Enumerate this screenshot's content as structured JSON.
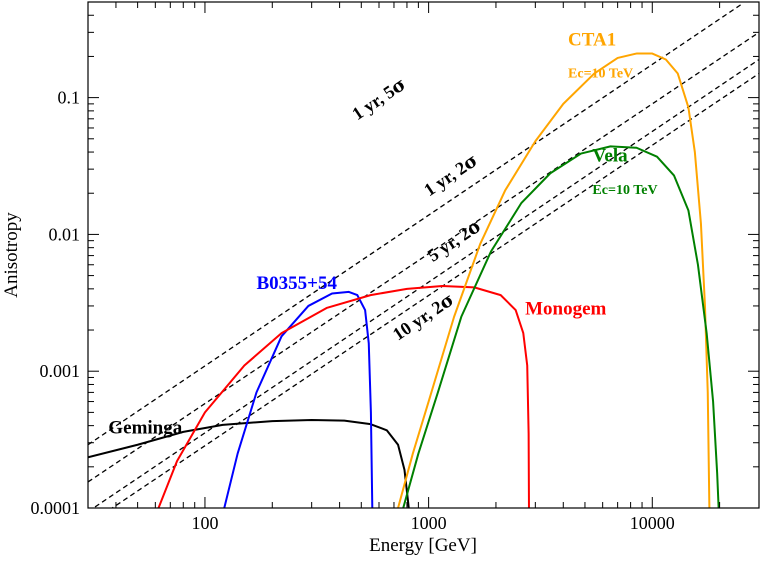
{
  "chart_data": {
    "type": "line",
    "xscale": "log",
    "yscale": "log",
    "xlim": [
      30,
      30000
    ],
    "ylim": [
      0.0001,
      0.5
    ],
    "xlabel": "Energy [GeV]",
    "ylabel": "Anisotropy",
    "x_ticks": [
      {
        "value": 100,
        "label": "100"
      },
      {
        "value": 1000,
        "label": "1000"
      },
      {
        "value": 10000,
        "label": "10000"
      }
    ],
    "y_ticks": [
      {
        "value": 0.0001,
        "label": "0.0001"
      },
      {
        "value": 0.001,
        "label": "0.001"
      },
      {
        "value": 0.01,
        "label": "0.01"
      },
      {
        "value": 0.1,
        "label": "0.1"
      }
    ],
    "sensitivity_lines": [
      {
        "name": "1 yr, 5σ",
        "label_main": "1 yr, 5",
        "label_sym": "σ",
        "color": "#000000",
        "points": [
          [
            30,
            0.00029
          ],
          [
            25000,
            0.48
          ]
        ],
        "label_at": [
          620,
          0.09
        ]
      },
      {
        "name": "1 yr, 2σ",
        "label_main": "1 yr, 2",
        "label_sym": "σ",
        "color": "#000000",
        "points": [
          [
            30,
            0.000155
          ],
          [
            30000,
            0.3
          ]
        ],
        "label_at": [
          1300,
          0.025
        ]
      },
      {
        "name": "5 yr, 2σ",
        "label_main": "5 yr, 2",
        "label_sym": "σ",
        "color": "#000000",
        "points": [
          [
            30,
            9.4e-05
          ],
          [
            30000,
            0.19
          ]
        ],
        "label_at": [
          1350,
          0.0083
        ]
      },
      {
        "name": "10 yr, 2σ",
        "label_main": "10 yr, 2",
        "label_sym": "σ",
        "color": "#000000",
        "points": [
          [
            30,
            7.6e-05
          ],
          [
            30000,
            0.15
          ]
        ],
        "label_at": [
          980,
          0.0023
        ]
      }
    ],
    "series": [
      {
        "name": "Geminga",
        "label": "Geminga",
        "sub_label": "",
        "color": "#000000",
        "label_at": [
          37,
          0.00035
        ],
        "points": [
          [
            30,
            0.000235
          ],
          [
            50,
            0.00029
          ],
          [
            80,
            0.00036
          ],
          [
            120,
            0.000405
          ],
          [
            200,
            0.000432
          ],
          [
            300,
            0.00044
          ],
          [
            420,
            0.000435
          ],
          [
            550,
            0.00041
          ],
          [
            650,
            0.00037
          ],
          [
            730,
            0.00029
          ],
          [
            780,
            0.00019
          ],
          [
            810,
            0.00011
          ],
          [
            815,
            0.0001
          ]
        ]
      },
      {
        "name": "B0355+54",
        "label": "B0355+54",
        "sub_label": "",
        "color": "#0000ff",
        "label_at": [
          170,
          0.004
        ],
        "points": [
          [
            122,
            0.0001
          ],
          [
            140,
            0.00025
          ],
          [
            170,
            0.0007
          ],
          [
            220,
            0.0018
          ],
          [
            290,
            0.003
          ],
          [
            370,
            0.0037
          ],
          [
            440,
            0.0038
          ],
          [
            480,
            0.0036
          ],
          [
            520,
            0.0028
          ],
          [
            540,
            0.0016
          ],
          [
            552,
            0.0005
          ],
          [
            560,
            0.0001
          ]
        ]
      },
      {
        "name": "Monogem",
        "label": "Monogem",
        "sub_label": "",
        "color": "#ff0000",
        "label_at": [
          2700,
          0.0026
        ],
        "points": [
          [
            62,
            0.0001
          ],
          [
            75,
            0.00022
          ],
          [
            100,
            0.0005
          ],
          [
            150,
            0.0011
          ],
          [
            220,
            0.0019
          ],
          [
            350,
            0.0029
          ],
          [
            550,
            0.0036
          ],
          [
            800,
            0.004
          ],
          [
            1150,
            0.0042
          ],
          [
            1600,
            0.0041
          ],
          [
            2100,
            0.0036
          ],
          [
            2450,
            0.0028
          ],
          [
            2650,
            0.0019
          ],
          [
            2760,
            0.0011
          ],
          [
            2800,
            0.00035
          ],
          [
            2810,
            0.0001
          ]
        ]
      },
      {
        "name": "CTA1",
        "label": "CTA1",
        "sub_label": "Ec=10 TeV",
        "color": "#ffa500",
        "label_at": [
          4200,
          0.24
        ],
        "sub_label_at": [
          4200,
          0.14
        ],
        "points": [
          [
            730,
            0.0001
          ],
          [
            850,
            0.00025
          ],
          [
            1000,
            0.0006
          ],
          [
            1300,
            0.0025
          ],
          [
            1700,
            0.0085
          ],
          [
            2200,
            0.021
          ],
          [
            3000,
            0.048
          ],
          [
            4000,
            0.09
          ],
          [
            5500,
            0.15
          ],
          [
            7000,
            0.195
          ],
          [
            8500,
            0.21
          ],
          [
            10000,
            0.21
          ],
          [
            11500,
            0.19
          ],
          [
            13000,
            0.15
          ],
          [
            14500,
            0.085
          ],
          [
            15500,
            0.04
          ],
          [
            16500,
            0.012
          ],
          [
            17200,
            0.003
          ],
          [
            17700,
            0.0007
          ],
          [
            18000,
            0.0001
          ]
        ]
      },
      {
        "name": "Vela",
        "label": "Vela",
        "sub_label": "Ec=10 TeV",
        "color": "#008000",
        "label_at": [
          5400,
          0.034
        ],
        "sub_label_at": [
          5400,
          0.0198
        ],
        "points": [
          [
            770,
            0.0001
          ],
          [
            900,
            0.00025
          ],
          [
            1100,
            0.0007
          ],
          [
            1400,
            0.0025
          ],
          [
            1900,
            0.0075
          ],
          [
            2600,
            0.017
          ],
          [
            3500,
            0.028
          ],
          [
            4800,
            0.039
          ],
          [
            6500,
            0.044
          ],
          [
            8500,
            0.043
          ],
          [
            10500,
            0.037
          ],
          [
            12500,
            0.027
          ],
          [
            14500,
            0.015
          ],
          [
            16000,
            0.006
          ],
          [
            17500,
            0.0019
          ],
          [
            18700,
            0.0006
          ],
          [
            19500,
            0.00018
          ],
          [
            19800,
            0.0001
          ]
        ]
      }
    ]
  }
}
